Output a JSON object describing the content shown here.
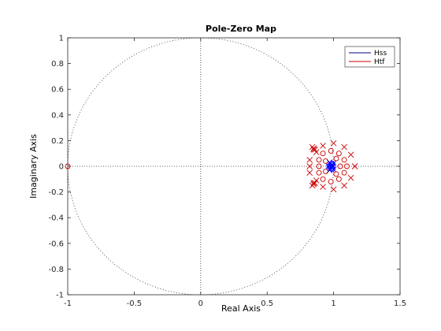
{
  "chart_data": {
    "type": "scatter",
    "title": "Pole-Zero Map",
    "xlabel": "Real Axis",
    "ylabel": "Imaginary Axis",
    "xlim": [
      -1,
      1.5
    ],
    "ylim": [
      -1,
      1
    ],
    "xticks": [
      "-1",
      "-0.5",
      "0",
      "0.5",
      "1",
      "1.5"
    ],
    "yticks": [
      "1",
      "0.8",
      "0.6",
      "0.4",
      "0.2",
      "0",
      "-0.2",
      "-0.4",
      "-0.6",
      "-0.8",
      "-1"
    ],
    "unit_circle": true,
    "legend_position": "top-right",
    "series": [
      {
        "name": "Hss",
        "color": "#0000ff",
        "poles": [
          [
            0.97,
            0.03
          ],
          [
            0.97,
            -0.03
          ],
          [
            0.98,
            0.02
          ],
          [
            0.98,
            -0.02
          ],
          [
            0.99,
            0.01
          ],
          [
            0.99,
            -0.01
          ],
          [
            1.0,
            0.025
          ],
          [
            1.0,
            -0.025
          ],
          [
            0.985,
            0.0
          ],
          [
            0.995,
            0.0
          ]
        ],
        "zeros": [
          [
            0.965,
            0.015
          ],
          [
            0.965,
            -0.015
          ],
          [
            0.975,
            0.005
          ],
          [
            0.975,
            -0.005
          ],
          [
            0.99,
            0.02
          ],
          [
            0.99,
            -0.02
          ]
        ]
      },
      {
        "name": "Htf",
        "color": "#cc0000",
        "poles": [
          [
            0.84,
            0.15
          ],
          [
            0.84,
            -0.15
          ],
          [
            0.85,
            0.13
          ],
          [
            0.85,
            -0.13
          ],
          [
            0.85,
            0.14
          ],
          [
            0.85,
            -0.14
          ],
          [
            0.86,
            0.13
          ],
          [
            0.86,
            -0.13
          ],
          [
            1.16,
            0.0
          ],
          [
            1.13,
            0.09
          ],
          [
            1.13,
            -0.09
          ],
          [
            1.08,
            0.15
          ],
          [
            1.08,
            -0.15
          ],
          [
            1.0,
            0.18
          ],
          [
            1.0,
            -0.18
          ],
          [
            0.92,
            0.16
          ],
          [
            0.92,
            -0.16
          ],
          [
            0.87,
            0.11
          ],
          [
            0.87,
            -0.11
          ],
          [
            0.82,
            0.05
          ],
          [
            0.82,
            -0.05
          ],
          [
            0.82,
            0.0
          ]
        ],
        "zeros": [
          [
            -1.0,
            0.0
          ],
          [
            1.1,
            0.0
          ],
          [
            1.08,
            0.05
          ],
          [
            1.08,
            -0.05
          ],
          [
            1.04,
            0.1
          ],
          [
            1.04,
            -0.1
          ],
          [
            0.98,
            0.12
          ],
          [
            0.98,
            -0.12
          ],
          [
            0.92,
            0.1
          ],
          [
            0.92,
            -0.1
          ],
          [
            0.89,
            0.05
          ],
          [
            0.89,
            -0.05
          ],
          [
            0.89,
            0.0
          ],
          [
            0.94,
            0.04
          ],
          [
            0.94,
            -0.04
          ],
          [
            1.02,
            0.06
          ],
          [
            1.02,
            -0.06
          ],
          [
            1.05,
            0.0
          ]
        ]
      }
    ]
  }
}
